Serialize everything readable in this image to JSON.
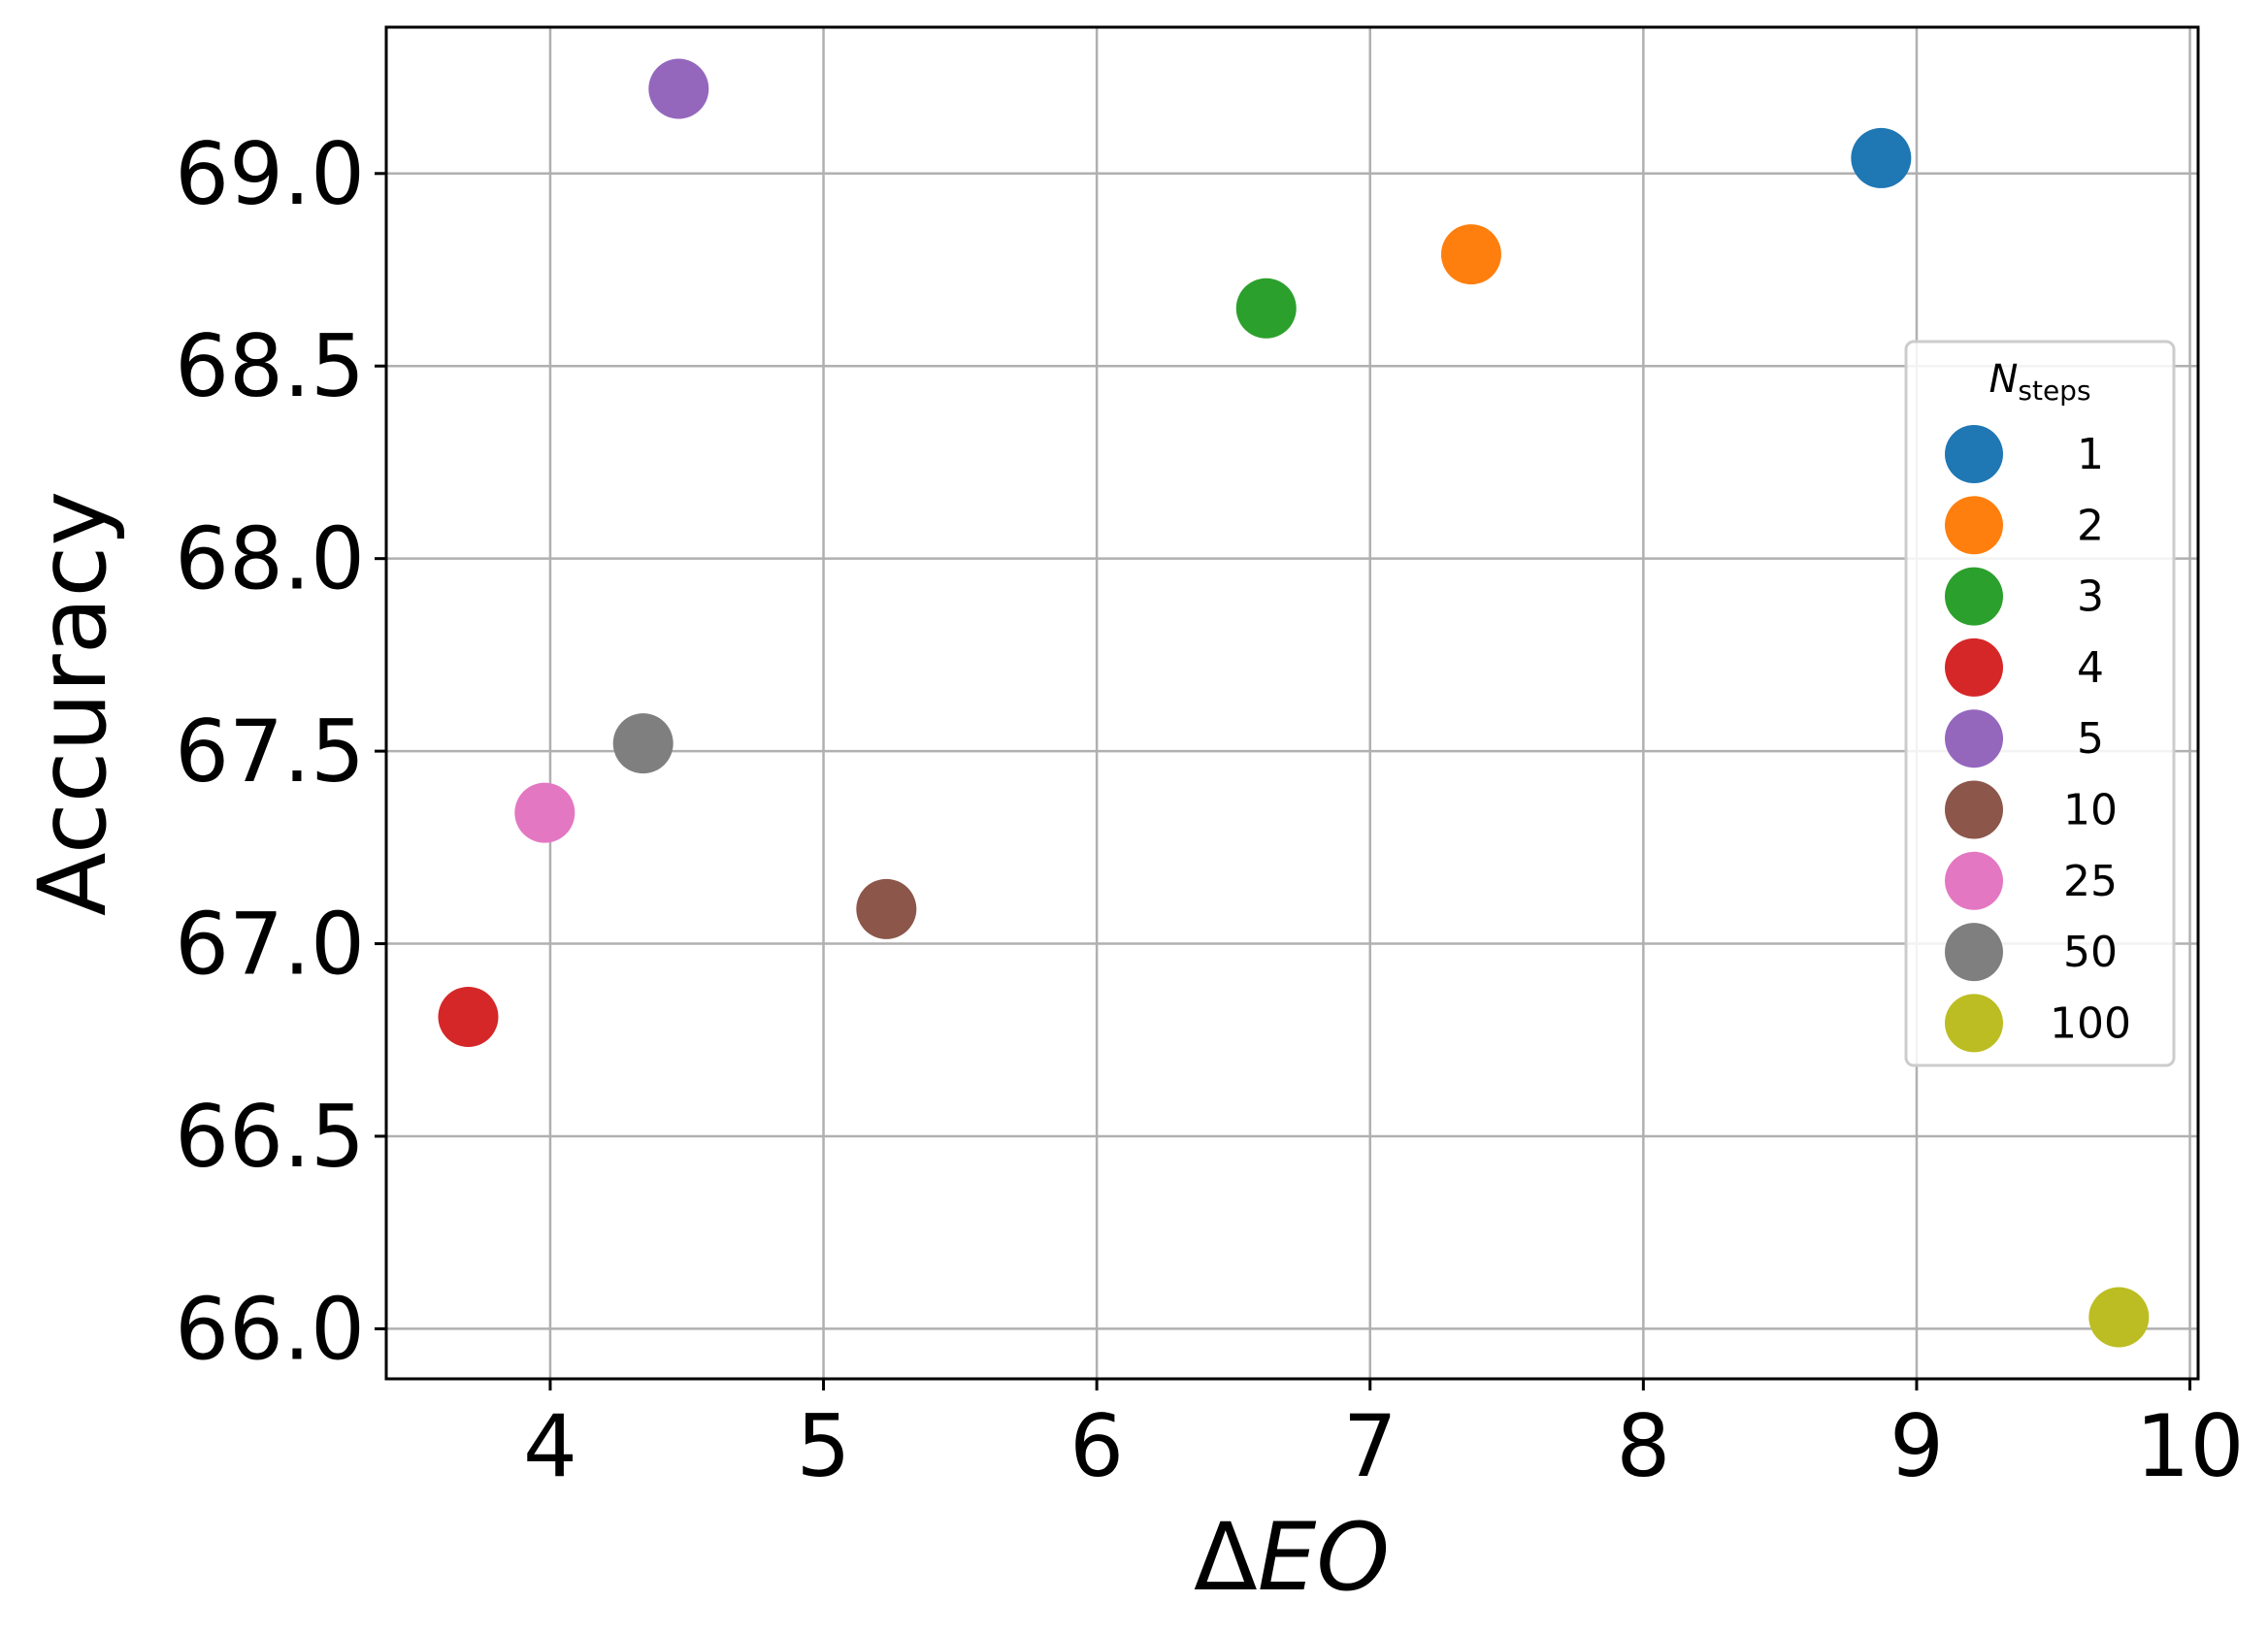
{
  "chart_data": {
    "type": "scatter",
    "xlabel_prefix": "Δ",
    "xlabel_italic": "EO",
    "ylabel": "Accuracy",
    "xlim": [
      3.4,
      10.03
    ],
    "ylim": [
      65.87,
      69.38
    ],
    "x_ticks": [
      "4",
      "5",
      "6",
      "7",
      "8",
      "9",
      "10"
    ],
    "x_tick_values": [
      4,
      5,
      6,
      7,
      8,
      9,
      10
    ],
    "y_ticks": [
      "66.0",
      "66.5",
      "67.0",
      "67.5",
      "68.0",
      "68.5",
      "69.0"
    ],
    "y_tick_values": [
      66.0,
      66.5,
      67.0,
      67.5,
      68.0,
      68.5,
      69.0
    ],
    "grid": true,
    "legend": {
      "title_main": "N",
      "title_sub": "steps",
      "placement": "center-right"
    },
    "series": [
      {
        "name": "1",
        "color": "#1f77b4",
        "x": 8.87,
        "y": 69.04
      },
      {
        "name": "2",
        "color": "#ff7f0e",
        "x": 7.37,
        "y": 68.79
      },
      {
        "name": "3",
        "color": "#2ca02c",
        "x": 6.62,
        "y": 68.65
      },
      {
        "name": "4",
        "color": "#d62728",
        "x": 3.7,
        "y": 66.81
      },
      {
        "name": "5",
        "color": "#9467bd",
        "x": 4.47,
        "y": 69.22
      },
      {
        "name": "10",
        "color": "#8c564b",
        "x": 5.23,
        "y": 67.09
      },
      {
        "name": "25",
        "color": "#e377c2",
        "x": 3.98,
        "y": 67.34
      },
      {
        "name": "50",
        "color": "#7f7f7f",
        "x": 4.34,
        "y": 67.52
      },
      {
        "name": "100",
        "color": "#bcbd22",
        "x": 9.74,
        "y": 66.03
      }
    ]
  }
}
